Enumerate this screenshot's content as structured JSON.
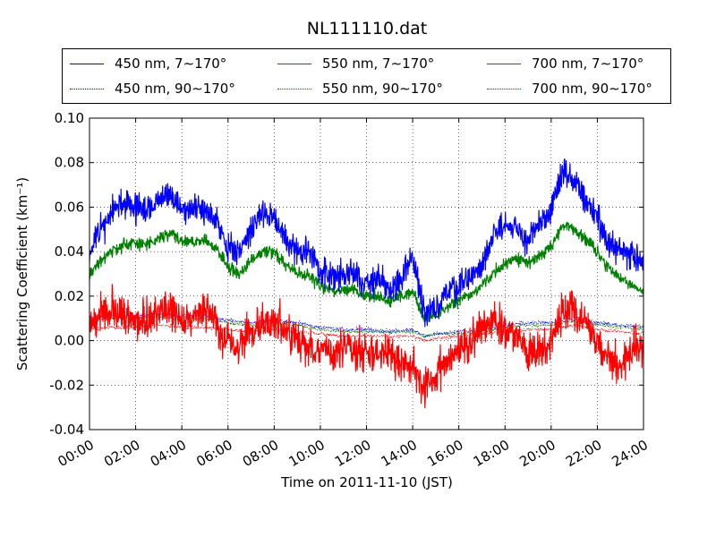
{
  "chart_data": {
    "type": "line",
    "title": "NL111110.dat",
    "xlabel": "Time on 2011-11-10 (JST)",
    "ylabel": "Scattering Coefficient (km⁻¹)",
    "x_unit": "hours",
    "xlim": [
      0,
      24
    ],
    "ylim": [
      -0.04,
      0.1
    ],
    "xticks": [
      "00:00",
      "02:00",
      "04:00",
      "06:00",
      "08:00",
      "10:00",
      "12:00",
      "14:00",
      "16:00",
      "18:00",
      "20:00",
      "22:00",
      "24:00"
    ],
    "yticks": [
      "-0.04",
      "-0.02",
      "0.00",
      "0.02",
      "0.04",
      "0.06",
      "0.08",
      "0.10"
    ],
    "grid": true,
    "legend": "top",
    "series": [
      {
        "name": "450 nm, 7∼170°",
        "color": "#0000ff",
        "style": "solid",
        "x": [
          0,
          0.5,
          1,
          1.5,
          2,
          2.5,
          3,
          3.5,
          4,
          4.5,
          5,
          5.5,
          6,
          6.5,
          7,
          7.5,
          8,
          8.5,
          9,
          9.5,
          10,
          10.5,
          11,
          11.5,
          12,
          12.5,
          13,
          13.5,
          14,
          14.5,
          15,
          15.5,
          16,
          16.5,
          17,
          17.5,
          18,
          18.5,
          19,
          19.5,
          20,
          20.5,
          21,
          21.5,
          22,
          22.5,
          23,
          23.5,
          24
        ],
        "y": [
          0.04,
          0.05,
          0.058,
          0.062,
          0.06,
          0.058,
          0.063,
          0.065,
          0.06,
          0.058,
          0.06,
          0.055,
          0.042,
          0.04,
          0.05,
          0.058,
          0.056,
          0.045,
          0.04,
          0.04,
          0.032,
          0.028,
          0.03,
          0.03,
          0.026,
          0.028,
          0.022,
          0.028,
          0.038,
          0.012,
          0.015,
          0.022,
          0.025,
          0.028,
          0.035,
          0.048,
          0.052,
          0.05,
          0.045,
          0.052,
          0.058,
          0.075,
          0.072,
          0.062,
          0.055,
          0.045,
          0.04,
          0.038,
          0.035
        ],
        "noise": 0.006,
        "seed": 11
      },
      {
        "name": "550 nm, 7∼170°",
        "color": "#008000",
        "style": "solid",
        "x": [
          0,
          0.5,
          1,
          1.5,
          2,
          2.5,
          3,
          3.5,
          4,
          4.5,
          5,
          5.5,
          6,
          6.5,
          7,
          7.5,
          8,
          8.5,
          9,
          9.5,
          10,
          10.5,
          11,
          11.5,
          12,
          12.5,
          13,
          13.5,
          14,
          14.5,
          15,
          15.5,
          16,
          16.5,
          17,
          17.5,
          18,
          18.5,
          19,
          19.5,
          20,
          20.5,
          21,
          21.5,
          22,
          22.5,
          23,
          23.5,
          24
        ],
        "y": [
          0.03,
          0.036,
          0.04,
          0.043,
          0.044,
          0.043,
          0.046,
          0.048,
          0.045,
          0.044,
          0.045,
          0.042,
          0.033,
          0.03,
          0.036,
          0.04,
          0.04,
          0.034,
          0.03,
          0.029,
          0.024,
          0.022,
          0.023,
          0.022,
          0.02,
          0.02,
          0.018,
          0.02,
          0.022,
          0.01,
          0.012,
          0.015,
          0.018,
          0.02,
          0.025,
          0.03,
          0.035,
          0.037,
          0.035,
          0.038,
          0.042,
          0.052,
          0.05,
          0.045,
          0.04,
          0.032,
          0.028,
          0.025,
          0.022
        ],
        "noise": 0.0025,
        "seed": 23
      },
      {
        "name": "700 nm, 7∼170°",
        "color": "#ff0000",
        "style": "solid",
        "x": [
          0,
          0.5,
          1,
          1.5,
          2,
          2.5,
          3,
          3.5,
          4,
          4.5,
          5,
          5.5,
          6,
          6.5,
          7,
          7.5,
          8,
          8.5,
          9,
          9.5,
          10,
          10.5,
          11,
          11.5,
          12,
          12.5,
          13,
          13.5,
          14,
          14.5,
          15,
          15.5,
          16,
          16.5,
          17,
          17.5,
          18,
          18.5,
          19,
          19.5,
          20,
          20.5,
          21,
          21.5,
          22,
          22.5,
          23,
          23.5,
          24
        ],
        "y": [
          0.008,
          0.012,
          0.014,
          0.012,
          0.008,
          0.01,
          0.012,
          0.014,
          0.01,
          0.012,
          0.012,
          0.008,
          -0.002,
          -0.004,
          0.006,
          0.008,
          0.01,
          0.005,
          0.0,
          -0.002,
          -0.004,
          -0.006,
          -0.002,
          -0.004,
          -0.006,
          -0.004,
          -0.006,
          -0.01,
          -0.012,
          -0.022,
          -0.016,
          -0.006,
          -0.004,
          0.0,
          0.005,
          0.008,
          0.006,
          0.002,
          -0.006,
          -0.004,
          0.0,
          0.012,
          0.014,
          0.008,
          0.0,
          -0.008,
          -0.01,
          -0.004,
          -0.002
        ],
        "noise": 0.008,
        "seed": 37
      },
      {
        "name": "450 nm, 90∼170°",
        "color": "#0000ff",
        "style": "dotted",
        "x": [
          0,
          1,
          2,
          3,
          4,
          5,
          6,
          7,
          8,
          9,
          10,
          11,
          12,
          13,
          14,
          14.5,
          15,
          16,
          17,
          18,
          19,
          20,
          21,
          22,
          23,
          24
        ],
        "y": [
          0.01,
          0.011,
          0.011,
          0.012,
          0.011,
          0.011,
          0.009,
          0.008,
          0.009,
          0.008,
          0.006,
          0.005,
          0.005,
          0.004,
          0.005,
          0.002,
          0.003,
          0.004,
          0.005,
          0.007,
          0.008,
          0.008,
          0.01,
          0.008,
          0.007,
          0.006
        ],
        "noise": 0.0008,
        "seed": 41
      },
      {
        "name": "550 nm, 90∼170°",
        "color": "#008000",
        "style": "dotted",
        "x": [
          0,
          1,
          2,
          3,
          4,
          5,
          6,
          7,
          8,
          9,
          10,
          11,
          12,
          13,
          14,
          14.5,
          15,
          16,
          17,
          18,
          19,
          20,
          21,
          22,
          23,
          24
        ],
        "y": [
          0.009,
          0.01,
          0.01,
          0.011,
          0.01,
          0.01,
          0.008,
          0.007,
          0.008,
          0.007,
          0.005,
          0.004,
          0.004,
          0.004,
          0.004,
          0.002,
          0.003,
          0.003,
          0.004,
          0.006,
          0.007,
          0.007,
          0.009,
          0.007,
          0.006,
          0.005
        ],
        "noise": 0.0007,
        "seed": 53
      },
      {
        "name": "700 nm, 90∼170°",
        "color": "#ff0000",
        "style": "dotted",
        "x": [
          0,
          1,
          2,
          3,
          4,
          5,
          6,
          7,
          8,
          9,
          10,
          11,
          12,
          13,
          14,
          14.5,
          15,
          16,
          17,
          18,
          19,
          20,
          21,
          22,
          23,
          24
        ],
        "y": [
          0.005,
          0.006,
          0.006,
          0.007,
          0.006,
          0.006,
          0.005,
          0.004,
          0.005,
          0.004,
          0.003,
          0.002,
          0.002,
          0.002,
          0.002,
          0.0,
          0.001,
          0.002,
          0.003,
          0.004,
          0.005,
          0.005,
          0.007,
          0.005,
          0.004,
          0.003
        ],
        "noise": 0.0007,
        "seed": 67
      }
    ]
  }
}
